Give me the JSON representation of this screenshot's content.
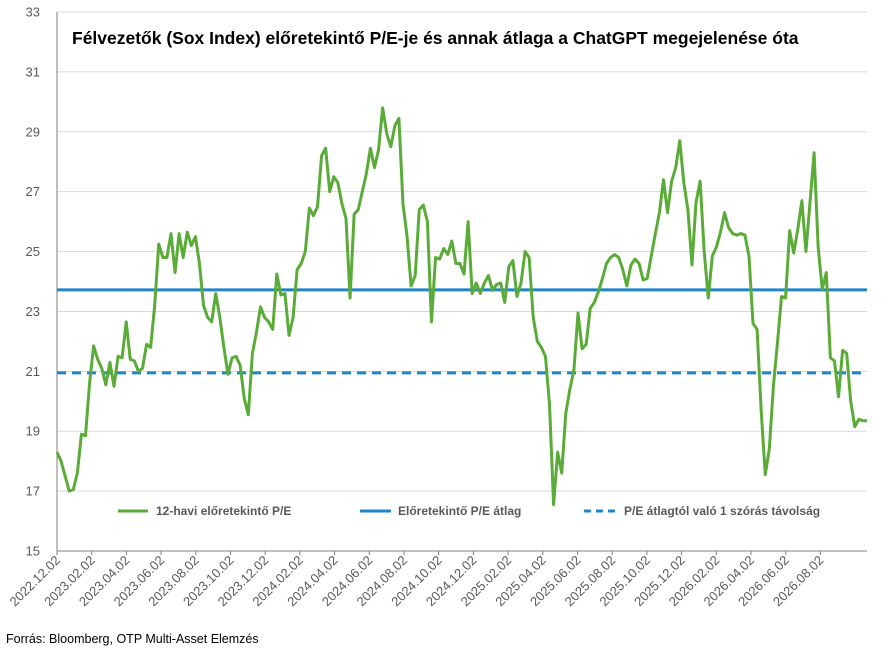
{
  "source_note": "Forrás: Bloomberg, OTP Multi-Asset Elemzés",
  "chart_data": {
    "type": "line",
    "title": "Félvezetők (Sox Index) előretekintő P/E-je és annak átlaga a ChatGPT megejelenése óta",
    "ylim": [
      15,
      33
    ],
    "yticks": [
      "15",
      "17",
      "19",
      "21",
      "23",
      "25",
      "27",
      "29",
      "31",
      "33"
    ],
    "grid": true,
    "legend_position": "bottom-inside",
    "xtick_labels": [
      "2022.12.02",
      "2023.02.02",
      "2023.04.02",
      "2023.06.02",
      "2023.08.02",
      "2023.10.02",
      "2023.12.02",
      "2024.02.02",
      "2024.04.02",
      "2024.06.02",
      "2024.08.02",
      "2024.10.02",
      "2024.12.02",
      "2025.02.02",
      "2025.04.02",
      "2025.06.02",
      "2025.08.02",
      "2025.10.02",
      "2025.12.02",
      "2026.02.02",
      "2026.04.02",
      "2026.06.02",
      "2026.08.02"
    ],
    "colors": {
      "pe": "#5aab38",
      "mean": "#1f85c8",
      "band": "#1f85c8",
      "grid": "#d9d9d9",
      "axis": "#7f7f7f",
      "tick_text": "#595959"
    },
    "series": [
      {
        "name": "12-havi előretekintő P/E",
        "style": "solid",
        "values": [
          18.3,
          18.0,
          17.5,
          17.0,
          17.05,
          17.6,
          18.9,
          18.85,
          20.6,
          21.85,
          21.4,
          21.1,
          20.55,
          21.3,
          20.5,
          21.5,
          21.45,
          22.65,
          21.4,
          21.35,
          21.0,
          21.1,
          21.9,
          21.8,
          23.2,
          25.25,
          24.8,
          24.8,
          25.6,
          24.3,
          25.6,
          24.8,
          25.65,
          25.2,
          25.5,
          24.6,
          23.2,
          22.8,
          22.65,
          23.6,
          22.8,
          21.8,
          20.9,
          21.45,
          21.5,
          21.2,
          20.1,
          19.55,
          21.6,
          22.3,
          23.15,
          22.8,
          22.65,
          22.4,
          24.25,
          23.55,
          23.6,
          22.2,
          22.8,
          24.4,
          24.6,
          25.0,
          26.45,
          26.2,
          26.5,
          28.2,
          28.45,
          27.0,
          27.5,
          27.3,
          26.6,
          26.1,
          23.45,
          26.25,
          26.4,
          27.0,
          27.6,
          28.45,
          27.8,
          28.4,
          29.8,
          28.95,
          28.5,
          29.2,
          29.45,
          26.6,
          25.5,
          23.85,
          24.2,
          26.4,
          26.55,
          26.0,
          22.65,
          24.8,
          24.75,
          25.1,
          24.9,
          25.35,
          24.6,
          24.6,
          24.25,
          26.0,
          23.6,
          23.95,
          23.6,
          23.95,
          24.2,
          23.7,
          23.9,
          23.95,
          23.3,
          24.5,
          24.7,
          23.5,
          23.95,
          25.0,
          24.8,
          22.8,
          22.0,
          21.8,
          21.5,
          19.9,
          16.55,
          18.3,
          17.6,
          19.6,
          20.4,
          21.05,
          22.95,
          21.75,
          21.9,
          23.1,
          23.3,
          23.65,
          24.1,
          24.6,
          24.8,
          24.9,
          24.8,
          24.4,
          23.85,
          24.55,
          24.75,
          24.6,
          24.05,
          24.1,
          24.85,
          25.6,
          26.3,
          27.4,
          26.3,
          27.35,
          27.8,
          28.7,
          27.3,
          26.4,
          24.55,
          26.65,
          27.35,
          25.0,
          23.45,
          24.85,
          25.15,
          25.65,
          26.3,
          25.8,
          25.6,
          25.55,
          25.6,
          25.55,
          24.85,
          22.6,
          22.4,
          19.7,
          17.55,
          18.4,
          20.5,
          21.95,
          23.5,
          23.45,
          25.7,
          24.95,
          25.75,
          26.7,
          25.0,
          26.65,
          28.3,
          25.15,
          23.75,
          24.3,
          21.45,
          21.35,
          20.15,
          21.7,
          21.6,
          20.0,
          19.15,
          19.4,
          19.35,
          19.35
        ]
      },
      {
        "name": "Előretekintő P/E átlag",
        "style": "solid",
        "value": 23.72
      },
      {
        "name": "P/E átlagtól való 1 szórás távolság",
        "style": "dashed",
        "value": 20.95
      }
    ]
  }
}
